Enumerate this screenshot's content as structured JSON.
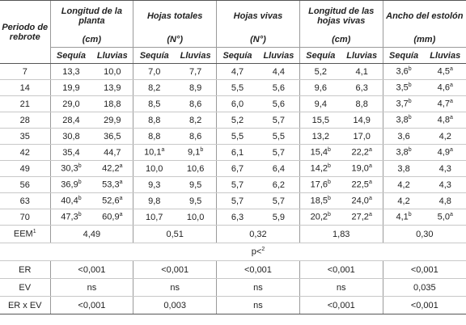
{
  "table": {
    "header": {
      "period": "Periodo de rebrote",
      "groups": [
        {
          "title": "Longitud de la planta",
          "unit": "(cm)"
        },
        {
          "title": "Hojas totales",
          "unit": "(N°)"
        },
        {
          "title": "Hojas vivas",
          "unit": "(N°)"
        },
        {
          "title": "Longitud de las hojas vivas",
          "unit": "(cm)"
        },
        {
          "title": "Ancho del estolón",
          "unit": "(mm)"
        }
      ],
      "subheaders": [
        "Sequía",
        "Lluvias",
        "Sequía",
        "Lluvias",
        "Sequía",
        "Lluvias",
        "Sequía",
        "Lluvias",
        "Sequía",
        "Lluvias"
      ]
    },
    "rows": [
      {
        "period": "7",
        "cells": [
          "13,3",
          "10,0",
          "7,0",
          "7,7",
          "4,7",
          "4,4",
          "5,2",
          "4,1",
          {
            "v": "3,6",
            "sup": "b"
          },
          {
            "v": "4,5",
            "sup": "a"
          }
        ]
      },
      {
        "period": "14",
        "cells": [
          "19,9",
          "13,9",
          "8,2",
          "8,9",
          "5,5",
          "5,6",
          "9,6",
          "6,3",
          {
            "v": "3,5",
            "sup": "b"
          },
          {
            "v": "4,6",
            "sup": "a"
          }
        ]
      },
      {
        "period": "21",
        "cells": [
          "29,0",
          "18,8",
          "8,5",
          "8,6",
          "6,0",
          "5,6",
          "9,4",
          "8,8",
          {
            "v": "3,7",
            "sup": "b"
          },
          {
            "v": "4,7",
            "sup": "a"
          }
        ]
      },
      {
        "period": "28",
        "cells": [
          "28,4",
          "29,9",
          "8,8",
          "8,2",
          "5,2",
          "5,7",
          "15,5",
          "14,9",
          {
            "v": "3,8",
            "sup": "b"
          },
          {
            "v": "4,8",
            "sup": "a"
          }
        ]
      },
      {
        "period": "35",
        "cells": [
          "30,8",
          "36,5",
          "8,8",
          "8,6",
          "5,5",
          "5,5",
          "13,2",
          "17,0",
          "3,6",
          "4,2"
        ]
      },
      {
        "period": "42",
        "cells": [
          "35,4",
          "44,7",
          {
            "v": "10,1",
            "sup": "a"
          },
          {
            "v": "9,1",
            "sup": "b"
          },
          "6,1",
          "5,7",
          {
            "v": "15,4",
            "sup": "b"
          },
          {
            "v": "22,2",
            "sup": "a"
          },
          {
            "v": "3,8",
            "sup": "b"
          },
          {
            "v": "4,9",
            "sup": "a"
          }
        ]
      },
      {
        "period": "49",
        "cells": [
          {
            "v": "30,3",
            "sup": "b"
          },
          {
            "v": "42,2",
            "sup": "a"
          },
          "10,0",
          "10,6",
          "6,7",
          "6,4",
          {
            "v": "14,2",
            "sup": "b"
          },
          {
            "v": "19,0",
            "sup": "a"
          },
          "3,8",
          "4,3"
        ]
      },
      {
        "period": "56",
        "cells": [
          {
            "v": "36,9",
            "sup": "b"
          },
          {
            "v": "53,3",
            "sup": "a"
          },
          "9,3",
          "9,5",
          "5,7",
          "6,2",
          {
            "v": "17,6",
            "sup": "b"
          },
          {
            "v": "22,5",
            "sup": "a"
          },
          "4,2",
          "4,3"
        ]
      },
      {
        "period": "63",
        "cells": [
          {
            "v": "40,4",
            "sup": "b"
          },
          {
            "v": "52,6",
            "sup": "a"
          },
          "9,8",
          "9,5",
          "5,7",
          "5,7",
          {
            "v": "18,5",
            "sup": "b"
          },
          {
            "v": "24,0",
            "sup": "a"
          },
          "4,2",
          "4,8"
        ]
      },
      {
        "period": "70",
        "cells": [
          {
            "v": "47,3",
            "sup": "b"
          },
          {
            "v": "60,9",
            "sup": "a"
          },
          "10,7",
          "10,0",
          "6,3",
          "5,9",
          {
            "v": "20,2",
            "sup": "b"
          },
          {
            "v": "27,2",
            "sup": "a"
          },
          {
            "v": "4,1",
            "sup": "b"
          },
          {
            "v": "5,0",
            "sup": "a"
          }
        ]
      }
    ],
    "eem": {
      "label": "EEM",
      "sup": "1",
      "values": [
        "4,49",
        "0,51",
        "0,32",
        "1,83",
        "0,30"
      ]
    },
    "p_label": {
      "text": "p<",
      "sup": "2"
    },
    "tests": [
      {
        "label": "ER",
        "values": [
          "<0,001",
          "<0,001",
          "<0,001",
          "<0,001",
          "<0,001"
        ]
      },
      {
        "label": "EV",
        "values": [
          "ns",
          "ns",
          "ns",
          "ns",
          "0,035"
        ]
      },
      {
        "label": "ER x EV",
        "values": [
          "<0,001",
          "0,003",
          "ns",
          "<0,001",
          "<0,001"
        ]
      }
    ]
  }
}
